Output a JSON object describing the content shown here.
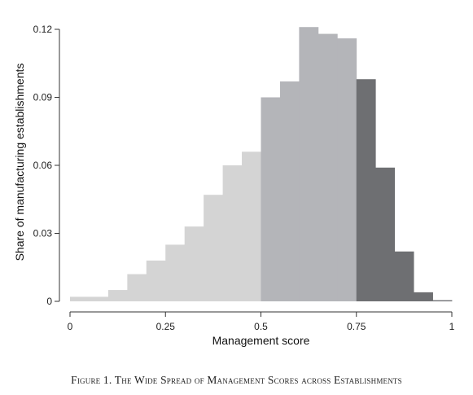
{
  "chart_data": {
    "type": "histogram",
    "title": "",
    "caption": "Figure 1. The Wide Spread of Management Scores across Establishments",
    "xlabel": "Management score",
    "ylabel": "Share of manufacturing establishments",
    "xlim": [
      0,
      1
    ],
    "ylim": [
      0,
      0.12
    ],
    "x_ticks": [
      "0",
      "0.25",
      "0.5",
      "0.75",
      "1"
    ],
    "y_ticks": [
      "0",
      "0.03",
      "0.06",
      "0.09",
      "0.12"
    ],
    "bin_width": 0.05,
    "grid": false,
    "legend": "none",
    "colors": {
      "light": "#d4d4d4",
      "medium": "#b4b5b9",
      "dark": "#6e6f72",
      "axis": "#333333"
    },
    "bars": [
      {
        "x0": 0.0,
        "x1": 0.05,
        "value": 0.002,
        "shade": "light"
      },
      {
        "x0": 0.05,
        "x1": 0.1,
        "value": 0.002,
        "shade": "light"
      },
      {
        "x0": 0.1,
        "x1": 0.15,
        "value": 0.005,
        "shade": "light"
      },
      {
        "x0": 0.15,
        "x1": 0.2,
        "value": 0.012,
        "shade": "light"
      },
      {
        "x0": 0.2,
        "x1": 0.25,
        "value": 0.018,
        "shade": "light"
      },
      {
        "x0": 0.25,
        "x1": 0.3,
        "value": 0.025,
        "shade": "light"
      },
      {
        "x0": 0.3,
        "x1": 0.35,
        "value": 0.033,
        "shade": "light"
      },
      {
        "x0": 0.35,
        "x1": 0.4,
        "value": 0.047,
        "shade": "light"
      },
      {
        "x0": 0.4,
        "x1": 0.45,
        "value": 0.06,
        "shade": "light"
      },
      {
        "x0": 0.45,
        "x1": 0.5,
        "value": 0.066,
        "shade": "light"
      },
      {
        "x0": 0.5,
        "x1": 0.55,
        "value": 0.09,
        "shade": "medium"
      },
      {
        "x0": 0.55,
        "x1": 0.6,
        "value": 0.097,
        "shade": "medium"
      },
      {
        "x0": 0.6,
        "x1": 0.65,
        "value": 0.121,
        "shade": "medium"
      },
      {
        "x0": 0.65,
        "x1": 0.7,
        "value": 0.118,
        "shade": "medium"
      },
      {
        "x0": 0.7,
        "x1": 0.75,
        "value": 0.116,
        "shade": "medium"
      },
      {
        "x0": 0.75,
        "x1": 0.8,
        "value": 0.098,
        "shade": "dark"
      },
      {
        "x0": 0.8,
        "x1": 0.85,
        "value": 0.059,
        "shade": "dark"
      },
      {
        "x0": 0.85,
        "x1": 0.9,
        "value": 0.022,
        "shade": "dark"
      },
      {
        "x0": 0.9,
        "x1": 0.95,
        "value": 0.004,
        "shade": "dark"
      },
      {
        "x0": 0.95,
        "x1": 1.0,
        "value": 0.0005,
        "shade": "dark"
      }
    ]
  }
}
